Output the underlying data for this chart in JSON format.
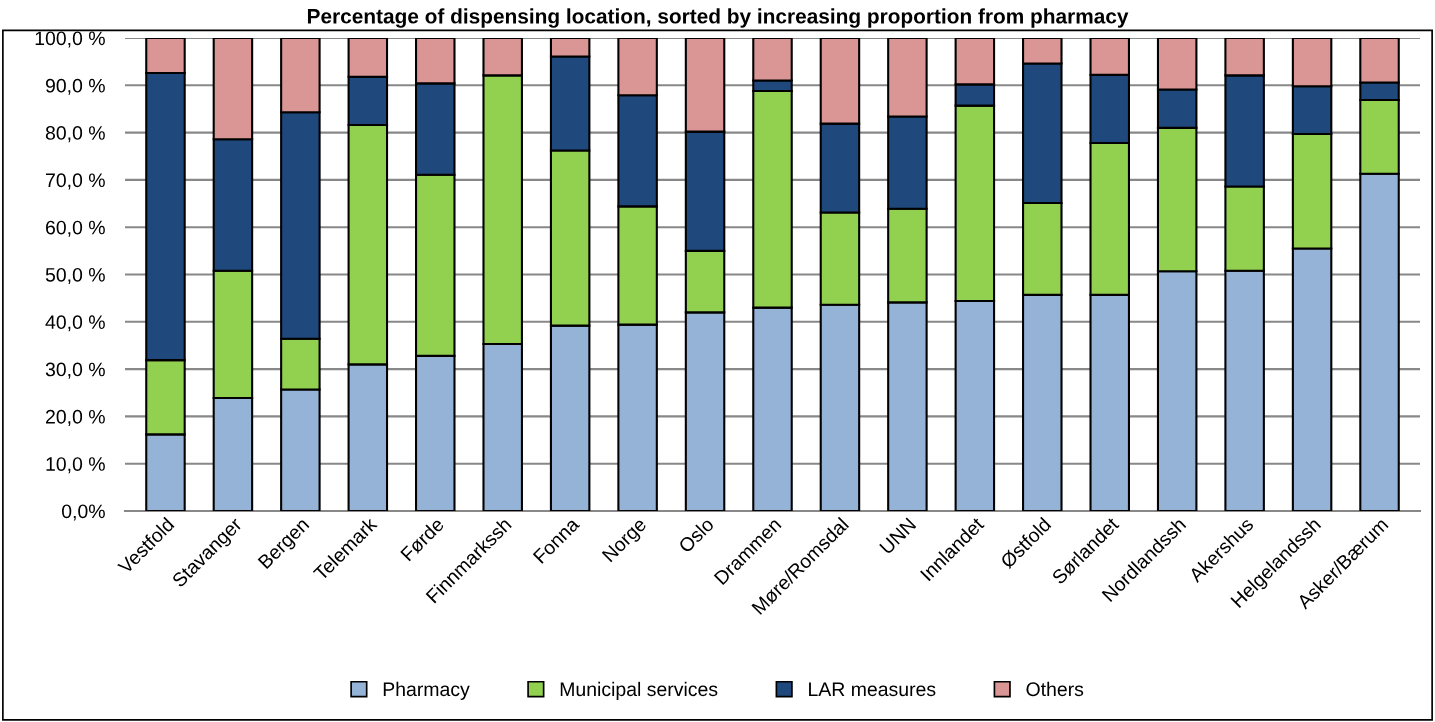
{
  "chart_data": {
    "type": "bar",
    "stacked": true,
    "title": "Percentage of dispensing location, sorted by increasing proportion from pharmacy",
    "categories": [
      "Vestfold",
      "Stavanger",
      "Bergen",
      "Telemark",
      "Førde",
      "Finnmarkssh",
      "Fonna",
      "Norge",
      "Oslo",
      "Drammen",
      "Møre/Romsdal",
      "UNN",
      "Innlandet",
      "Østfold",
      "Sørlandet",
      "Nordlandssh",
      "Akershus",
      "Helgelandssh",
      "Asker/Bærum"
    ],
    "series": [
      {
        "name": "Pharmacy",
        "color": "#95b3d7",
        "values": [
          16.2,
          23.9,
          25.7,
          31.0,
          32.8,
          35.3,
          39.2,
          39.4,
          42.0,
          43.0,
          43.6,
          44.1,
          44.4,
          45.7,
          45.7,
          50.7,
          50.8,
          55.5,
          71.3
        ]
      },
      {
        "name": "Municipal services",
        "color": "#92d050",
        "values": [
          15.7,
          26.9,
          10.7,
          50.6,
          38.3,
          56.8,
          37.0,
          25.0,
          13.0,
          45.8,
          19.5,
          19.8,
          41.3,
          19.4,
          32.1,
          30.3,
          17.8,
          24.2,
          15.6
        ]
      },
      {
        "name": "LAR measures",
        "color": "#1f497d",
        "values": [
          60.7,
          27.8,
          47.9,
          10.2,
          19.3,
          null,
          19.9,
          23.5,
          25.2,
          2.2,
          18.8,
          19.5,
          4.5,
          29.5,
          14.4,
          8.1,
          23.5,
          10.1,
          3.7
        ]
      },
      {
        "name": "Others",
        "color": "#d99694",
        "values": [
          7.4,
          21.4,
          15.7,
          8.2,
          9.6,
          7.9,
          3.9,
          12.1,
          19.8,
          9.0,
          18.1,
          16.6,
          9.8,
          5.4,
          7.8,
          10.9,
          7.9,
          10.2,
          9.4
        ]
      }
    ],
    "ylim": [
      0,
      100
    ],
    "yticks": [
      {
        "value": 0,
        "label": "0,0%"
      },
      {
        "value": 10,
        "label": "10,0 %"
      },
      {
        "value": 20,
        "label": "20,0 %"
      },
      {
        "value": 30,
        "label": "30,0 %"
      },
      {
        "value": 40,
        "label": "40,0 %"
      },
      {
        "value": 50,
        "label": "50,0 %"
      },
      {
        "value": 60,
        "label": "60,0 %"
      },
      {
        "value": 70,
        "label": "70,0 %"
      },
      {
        "value": 80,
        "label": "80,0 %"
      },
      {
        "value": 90,
        "label": "90,0 %"
      },
      {
        "value": 100,
        "label": "100,0 %"
      }
    ],
    "grid": "y",
    "legend": "bottom"
  }
}
